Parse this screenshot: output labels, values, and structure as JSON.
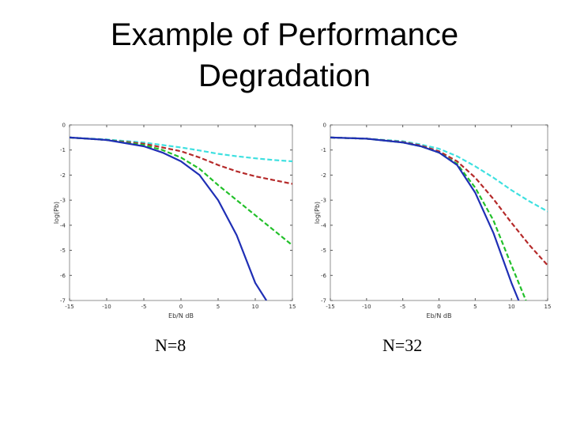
{
  "slide": {
    "title_line1": "Example of Performance",
    "title_line2": "Degradation"
  },
  "chart_data": [
    {
      "type": "line",
      "caption": "N=8",
      "xlabel": "Eb/N dB",
      "ylabel": "log(Pb)",
      "xlim": [
        -15,
        15
      ],
      "ylim": [
        -7,
        0
      ],
      "xticks": [
        -15,
        -10,
        -5,
        0,
        5,
        10,
        15
      ],
      "yticks": [
        0,
        -1,
        -2,
        -3,
        -4,
        -5,
        -6,
        -7
      ],
      "grid": false,
      "series": [
        {
          "color": "#1f2fb5",
          "dash": "",
          "x": [
            -15,
            -10,
            -5,
            -2.5,
            0,
            2.5,
            5,
            7.5,
            10,
            11.5
          ],
          "y": [
            -0.5,
            -0.6,
            -0.85,
            -1.1,
            -1.45,
            -2.0,
            -3.0,
            -4.4,
            -6.3,
            -7.0
          ]
        },
        {
          "color": "#22c02a",
          "dash": "6,3",
          "x": [
            -15,
            -10,
            -5,
            -2.5,
            0,
            2.5,
            5,
            7.5,
            10,
            12.5,
            15
          ],
          "y": [
            -0.5,
            -0.6,
            -0.8,
            -1.0,
            -1.3,
            -1.75,
            -2.4,
            -3.0,
            -3.6,
            -4.2,
            -4.8
          ]
        },
        {
          "color": "#b52a2a",
          "dash": "6,3",
          "x": [
            -15,
            -10,
            -5,
            -2.5,
            0,
            2.5,
            5,
            7.5,
            10,
            12.5,
            15
          ],
          "y": [
            -0.5,
            -0.6,
            -0.75,
            -0.9,
            -1.05,
            -1.3,
            -1.6,
            -1.85,
            -2.05,
            -2.2,
            -2.35
          ]
        },
        {
          "color": "#3ee0e0",
          "dash": "6,3",
          "x": [
            -15,
            -10,
            -5,
            -2.5,
            0,
            2.5,
            5,
            7.5,
            10,
            12.5,
            15
          ],
          "y": [
            -0.5,
            -0.58,
            -0.7,
            -0.8,
            -0.9,
            -1.02,
            -1.15,
            -1.25,
            -1.33,
            -1.4,
            -1.45
          ]
        }
      ]
    },
    {
      "type": "line",
      "caption": "N=32",
      "xlabel": "Eb/N dB",
      "ylabel": "log(Pb)",
      "xlim": [
        -15,
        15
      ],
      "ylim": [
        -7,
        0
      ],
      "xticks": [
        -15,
        -10,
        -5,
        0,
        5,
        10,
        15
      ],
      "yticks": [
        0,
        -1,
        -2,
        -3,
        -4,
        -5,
        -6,
        -7
      ],
      "grid": false,
      "series": [
        {
          "color": "#1f2fb5",
          "dash": "",
          "x": [
            -15,
            -10,
            -5,
            -2.5,
            0,
            2.5,
            5,
            7.5,
            10,
            11
          ],
          "y": [
            -0.5,
            -0.55,
            -0.7,
            -0.85,
            -1.1,
            -1.6,
            -2.7,
            -4.3,
            -6.3,
            -7.0
          ]
        },
        {
          "color": "#22c02a",
          "dash": "6,3",
          "x": [
            -15,
            -10,
            -5,
            -2.5,
            0,
            2.5,
            5,
            7.5,
            10,
            12
          ],
          "y": [
            -0.5,
            -0.55,
            -0.7,
            -0.85,
            -1.1,
            -1.55,
            -2.5,
            -3.8,
            -5.6,
            -7.0
          ]
        },
        {
          "color": "#b52a2a",
          "dash": "6,3",
          "x": [
            -15,
            -10,
            -5,
            -2.5,
            0,
            2.5,
            5,
            7.5,
            10,
            12.5,
            15
          ],
          "y": [
            -0.5,
            -0.55,
            -0.68,
            -0.82,
            -1.05,
            -1.45,
            -2.1,
            -2.95,
            -3.9,
            -4.8,
            -5.6
          ]
        },
        {
          "color": "#3ee0e0",
          "dash": "6,3",
          "x": [
            -15,
            -10,
            -5,
            -2.5,
            0,
            2.5,
            5,
            7.5,
            10,
            12.5,
            15
          ],
          "y": [
            -0.5,
            -0.55,
            -0.65,
            -0.78,
            -0.95,
            -1.25,
            -1.65,
            -2.1,
            -2.6,
            -3.05,
            -3.45
          ]
        }
      ]
    }
  ]
}
